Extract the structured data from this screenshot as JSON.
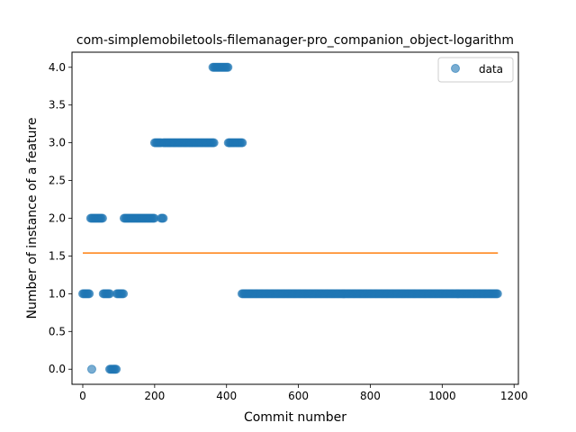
{
  "chart_data": {
    "type": "scatter",
    "title": "com-simplemobiletools-filemanager-pro_companion_object-logarithm",
    "xlabel": "Commit number",
    "ylabel": "Number of instance of a feature",
    "xlim": [
      -30,
      1212
    ],
    "ylim": [
      -0.2,
      4.2
    ],
    "xticks": [
      0,
      200,
      400,
      600,
      800,
      1000,
      1200
    ],
    "yticks": [
      0.0,
      0.5,
      1.0,
      1.5,
      2.0,
      2.5,
      3.0,
      3.5,
      4.0
    ],
    "xtick_labels": [
      "0",
      "200",
      "400",
      "600",
      "800",
      "1000",
      "1200"
    ],
    "ytick_labels": [
      "0.0",
      "0.5",
      "1.0",
      "1.5",
      "2.0",
      "2.5",
      "3.0",
      "3.5",
      "4.0"
    ],
    "legend": {
      "placement": "top-right",
      "entries": [
        "data"
      ]
    },
    "grid": false,
    "colors": {
      "points": "#1f77b4",
      "line": "#ff7f0e"
    },
    "series": [
      {
        "name": "data",
        "kind": "scatter",
        "segments": [
          {
            "y": 1,
            "x_start": 0,
            "x_end": 20
          },
          {
            "y": 2,
            "x_start": 22,
            "x_end": 55
          },
          {
            "y": 0,
            "x_start": 25,
            "x_end": 25
          },
          {
            "y": 1,
            "x_start": 57,
            "x_end": 75
          },
          {
            "y": 0,
            "x_start": 75,
            "x_end": 95
          },
          {
            "y": 1,
            "x_start": 95,
            "x_end": 115
          },
          {
            "y": 2,
            "x_start": 115,
            "x_end": 200
          },
          {
            "y": 3,
            "x_start": 200,
            "x_end": 218
          },
          {
            "y": 2,
            "x_start": 218,
            "x_end": 224
          },
          {
            "y": 3,
            "x_start": 224,
            "x_end": 365
          },
          {
            "y": 4,
            "x_start": 362,
            "x_end": 405
          },
          {
            "y": 3,
            "x_start": 405,
            "x_end": 445
          },
          {
            "y": 1,
            "x_start": 443,
            "x_end": 1155
          }
        ]
      },
      {
        "name": "",
        "kind": "line",
        "x": [
          0,
          1155
        ],
        "y": [
          1.54,
          1.54
        ]
      }
    ]
  }
}
